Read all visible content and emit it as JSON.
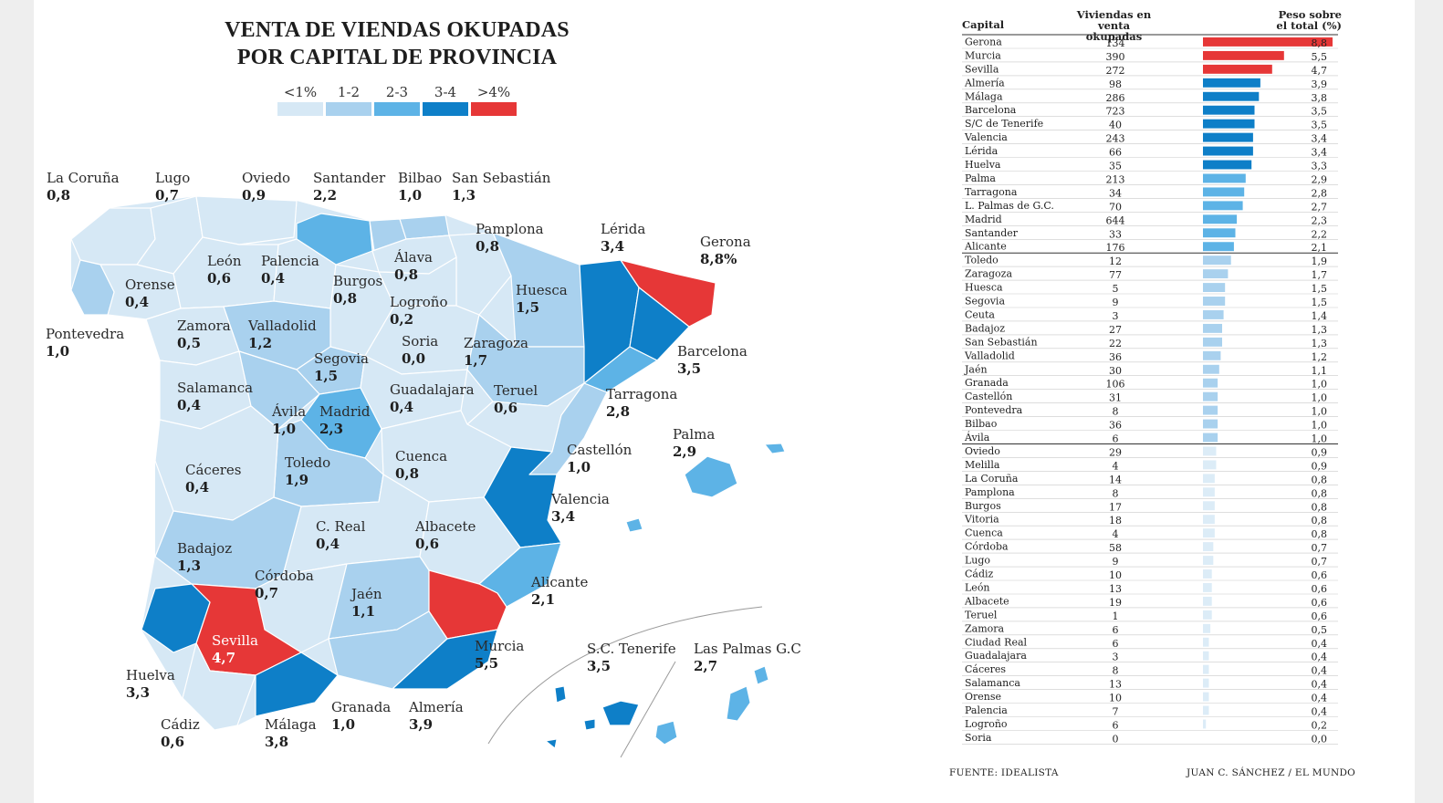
{
  "chart_data": [
    {
      "type": "choropleth-map",
      "title": [
        "VENTA DE VIENDAS OKUPADAS",
        "POR CAPITAL DE PROVINCIA"
      ],
      "legend": [
        {
          "label": "<1%",
          "color": "#d6e8f5"
        },
        {
          "label": "1-2",
          "color": "#a9d1ee"
        },
        {
          "label": "2-3",
          "color": "#5db3e6"
        },
        {
          "label": "3-4",
          "color": "#0e7fc8"
        },
        {
          "label": ">4%",
          "color": "#e63737"
        }
      ],
      "provinces": [
        {
          "name": "La Coruña",
          "value": "0,8"
        },
        {
          "name": "Lugo",
          "value": "0,7"
        },
        {
          "name": "Oviedo",
          "value": "0,9"
        },
        {
          "name": "Santander",
          "value": "2,2"
        },
        {
          "name": "Bilbao",
          "value": "1,0"
        },
        {
          "name": "San Sebastián",
          "value": "1,3"
        },
        {
          "name": "Pamplona",
          "value": "0,8"
        },
        {
          "name": "Lérida",
          "value": "3,4"
        },
        {
          "name": "Gerona",
          "value": "8,8%"
        },
        {
          "name": "León",
          "value": "0,6"
        },
        {
          "name": "Palencia",
          "value": "0,4"
        },
        {
          "name": "Álava",
          "value": "0,8"
        },
        {
          "name": "Orense",
          "value": "0,4"
        },
        {
          "name": "Burgos",
          "value": "0,8"
        },
        {
          "name": "Huesca",
          "value": "1,5"
        },
        {
          "name": "Logroño",
          "value": "0,2"
        },
        {
          "name": "Pontevedra",
          "value": "1,0"
        },
        {
          "name": "Zamora",
          "value": "0,5"
        },
        {
          "name": "Valladolid",
          "value": "1,2"
        },
        {
          "name": "Soria",
          "value": "0,0"
        },
        {
          "name": "Zaragoza",
          "value": "1,7"
        },
        {
          "name": "Segovia",
          "value": "1,5"
        },
        {
          "name": "Barcelona",
          "value": "3,5"
        },
        {
          "name": "Salamanca",
          "value": "0,4"
        },
        {
          "name": "Guadalajara",
          "value": "0,4"
        },
        {
          "name": "Teruel",
          "value": "0,6"
        },
        {
          "name": "Tarragona",
          "value": "2,8"
        },
        {
          "name": "Ávila",
          "value": "1,0"
        },
        {
          "name": "Madrid",
          "value": "2,3"
        },
        {
          "name": "Palma",
          "value": "2,9"
        },
        {
          "name": "Cuenca",
          "value": "0,8"
        },
        {
          "name": "Castellón",
          "value": "1,0"
        },
        {
          "name": "Toledo",
          "value": "1,9"
        },
        {
          "name": "Cáceres",
          "value": "0,4"
        },
        {
          "name": "Valencia",
          "value": "3,4"
        },
        {
          "name": "C. Real",
          "value": "0,4"
        },
        {
          "name": "Albacete",
          "value": "0,6"
        },
        {
          "name": "Badajoz",
          "value": "1,3"
        },
        {
          "name": "Córdoba",
          "value": "0,7"
        },
        {
          "name": "Alicante",
          "value": "2,1"
        },
        {
          "name": "Jaén",
          "value": "1,1"
        },
        {
          "name": "Sevilla",
          "value": "4,7"
        },
        {
          "name": "Murcia",
          "value": "5,5"
        },
        {
          "name": "S.C. Tenerife",
          "value": "3,5"
        },
        {
          "name": "Las Palmas G.C",
          "value": "2,7"
        },
        {
          "name": "Huelva",
          "value": "3,3"
        },
        {
          "name": "Granada",
          "value": "1,0"
        },
        {
          "name": "Almería",
          "value": "3,9"
        },
        {
          "name": "Cádiz",
          "value": "0,6"
        },
        {
          "name": "Málaga",
          "value": "3,8"
        }
      ]
    },
    {
      "type": "table",
      "columns": [
        "Capital",
        "Viviendas en venta okupadas",
        "Peso sobre el total (%)"
      ],
      "bar_max": 8.8,
      "rows": [
        {
          "capital": "Gerona",
          "viviendas": 134,
          "peso": 8.8,
          "peso_label": "8,8"
        },
        {
          "capital": "Murcia",
          "viviendas": 390,
          "peso": 5.5,
          "peso_label": "5,5"
        },
        {
          "capital": "Sevilla",
          "viviendas": 272,
          "peso": 4.7,
          "peso_label": "4,7"
        },
        {
          "capital": "Almería",
          "viviendas": 98,
          "peso": 3.9,
          "peso_label": "3,9"
        },
        {
          "capital": "Málaga",
          "viviendas": 286,
          "peso": 3.8,
          "peso_label": "3,8"
        },
        {
          "capital": "Barcelona",
          "viviendas": 723,
          "peso": 3.5,
          "peso_label": "3,5"
        },
        {
          "capital": "S/C de Tenerife",
          "viviendas": 40,
          "peso": 3.5,
          "peso_label": "3,5"
        },
        {
          "capital": "Valencia",
          "viviendas": 243,
          "peso": 3.4,
          "peso_label": "3,4"
        },
        {
          "capital": "Lérida",
          "viviendas": 66,
          "peso": 3.4,
          "peso_label": "3,4"
        },
        {
          "capital": "Huelva",
          "viviendas": 35,
          "peso": 3.3,
          "peso_label": "3,3"
        },
        {
          "capital": "Palma",
          "viviendas": 213,
          "peso": 2.9,
          "peso_label": "2,9"
        },
        {
          "capital": "Tarragona",
          "viviendas": 34,
          "peso": 2.8,
          "peso_label": "2,8"
        },
        {
          "capital": "L. Palmas de G.C.",
          "viviendas": 70,
          "peso": 2.7,
          "peso_label": "2,7"
        },
        {
          "capital": "Madrid",
          "viviendas": 644,
          "peso": 2.3,
          "peso_label": "2,3"
        },
        {
          "capital": "Santander",
          "viviendas": 33,
          "peso": 2.2,
          "peso_label": "2,2"
        },
        {
          "capital": "Alicante",
          "viviendas": 176,
          "peso": 2.1,
          "peso_label": "2,1"
        },
        {
          "capital": "Toledo",
          "viviendas": 12,
          "peso": 1.9,
          "peso_label": "1,9"
        },
        {
          "capital": "Zaragoza",
          "viviendas": 77,
          "peso": 1.7,
          "peso_label": "1,7"
        },
        {
          "capital": "Huesca",
          "viviendas": 5,
          "peso": 1.5,
          "peso_label": "1,5"
        },
        {
          "capital": "Segovia",
          "viviendas": 9,
          "peso": 1.5,
          "peso_label": "1,5"
        },
        {
          "capital": "Ceuta",
          "viviendas": 3,
          "peso": 1.4,
          "peso_label": "1,4"
        },
        {
          "capital": "Badajoz",
          "viviendas": 27,
          "peso": 1.3,
          "peso_label": "1,3"
        },
        {
          "capital": "San Sebastián",
          "viviendas": 22,
          "peso": 1.3,
          "peso_label": "1,3"
        },
        {
          "capital": "Valladolid",
          "viviendas": 36,
          "peso": 1.2,
          "peso_label": "1,2"
        },
        {
          "capital": "Jaén",
          "viviendas": 30,
          "peso": 1.1,
          "peso_label": "1,1"
        },
        {
          "capital": "Granada",
          "viviendas": 106,
          "peso": 1.0,
          "peso_label": "1,0"
        },
        {
          "capital": "Castellón",
          "viviendas": 31,
          "peso": 1.0,
          "peso_label": "1,0"
        },
        {
          "capital": "Pontevedra",
          "viviendas": 8,
          "peso": 1.0,
          "peso_label": "1,0"
        },
        {
          "capital": "Bilbao",
          "viviendas": 36,
          "peso": 1.0,
          "peso_label": "1,0"
        },
        {
          "capital": "Ávila",
          "viviendas": 6,
          "peso": 1.0,
          "peso_label": "1,0"
        },
        {
          "capital": "Oviedo",
          "viviendas": 29,
          "peso": 0.9,
          "peso_label": "0,9"
        },
        {
          "capital": "Melilla",
          "viviendas": 4,
          "peso": 0.9,
          "peso_label": "0,9"
        },
        {
          "capital": "La Coruña",
          "viviendas": 14,
          "peso": 0.8,
          "peso_label": "0,8"
        },
        {
          "capital": "Pamplona",
          "viviendas": 8,
          "peso": 0.8,
          "peso_label": "0,8"
        },
        {
          "capital": "Burgos",
          "viviendas": 17,
          "peso": 0.8,
          "peso_label": "0,8"
        },
        {
          "capital": "Vitoria",
          "viviendas": 18,
          "peso": 0.8,
          "peso_label": "0,8"
        },
        {
          "capital": "Cuenca",
          "viviendas": 4,
          "peso": 0.8,
          "peso_label": "0,8"
        },
        {
          "capital": "Córdoba",
          "viviendas": 58,
          "peso": 0.7,
          "peso_label": "0,7"
        },
        {
          "capital": "Lugo",
          "viviendas": 9,
          "peso": 0.7,
          "peso_label": "0,7"
        },
        {
          "capital": "Cádiz",
          "viviendas": 10,
          "peso": 0.6,
          "peso_label": "0,6"
        },
        {
          "capital": "León",
          "viviendas": 13,
          "peso": 0.6,
          "peso_label": "0,6"
        },
        {
          "capital": "Albacete",
          "viviendas": 19,
          "peso": 0.6,
          "peso_label": "0,6"
        },
        {
          "capital": "Teruel",
          "viviendas": 1,
          "peso": 0.6,
          "peso_label": "0,6"
        },
        {
          "capital": "Zamora",
          "viviendas": 6,
          "peso": 0.5,
          "peso_label": "0,5"
        },
        {
          "capital": "Ciudad Real",
          "viviendas": 6,
          "peso": 0.4,
          "peso_label": "0,4"
        },
        {
          "capital": "Guadalajara",
          "viviendas": 3,
          "peso": 0.4,
          "peso_label": "0,4"
        },
        {
          "capital": "Cáceres",
          "viviendas": 8,
          "peso": 0.4,
          "peso_label": "0,4"
        },
        {
          "capital": "Salamanca",
          "viviendas": 13,
          "peso": 0.4,
          "peso_label": "0,4"
        },
        {
          "capital": "Orense",
          "viviendas": 10,
          "peso": 0.4,
          "peso_label": "0,4"
        },
        {
          "capital": "Palencia",
          "viviendas": 7,
          "peso": 0.4,
          "peso_label": "0,4"
        },
        {
          "capital": "Logroño",
          "viviendas": 6,
          "peso": 0.2,
          "peso_label": "0,2"
        },
        {
          "capital": "Soria",
          "viviendas": 0,
          "peso": 0.0,
          "peso_label": "0,0"
        }
      ]
    }
  ],
  "table_header": {
    "capital": "Capital",
    "viviendas": [
      "Viviendas en venta",
      "okupadas"
    ],
    "peso": [
      "Peso sobre",
      "el total (%)"
    ]
  },
  "footer": {
    "source": "FUENTE: IDEALISTA",
    "credit": "JUAN C. SÁNCHEZ / EL MUNDO"
  }
}
